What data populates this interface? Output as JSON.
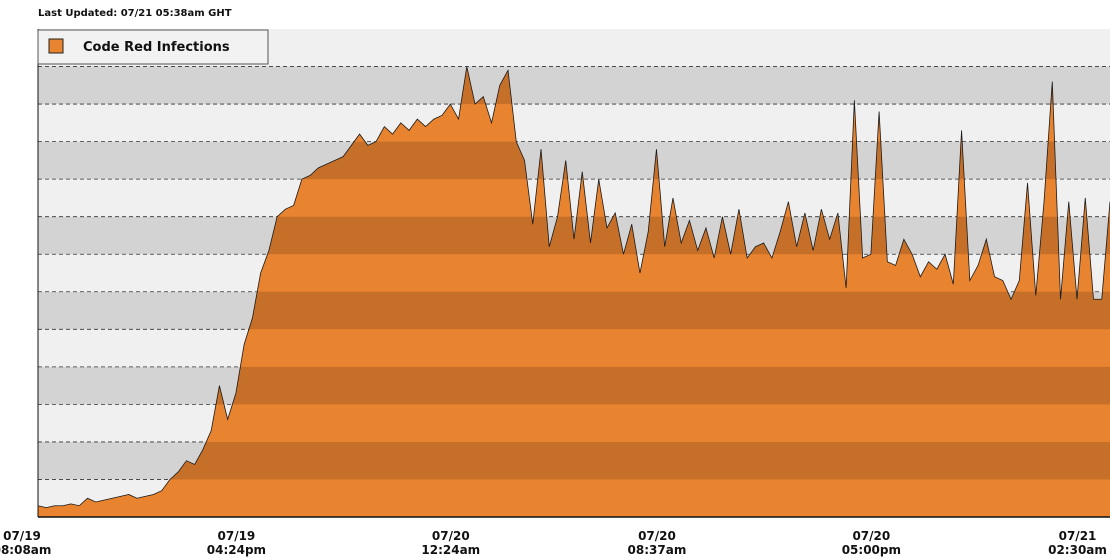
{
  "chart_data": {
    "type": "area",
    "subtitle": "Last Updated: 07/21 05:38am GHT",
    "series": [
      {
        "name": "Code Red Infections",
        "color": "#e8832f",
        "values": [
          0.3,
          0.25,
          0.3,
          0.3,
          0.35,
          0.3,
          0.5,
          0.4,
          0.45,
          0.5,
          0.55,
          0.6,
          0.5,
          0.55,
          0.6,
          0.7,
          1.0,
          1.2,
          1.5,
          1.4,
          1.8,
          2.3,
          3.5,
          2.6,
          3.3,
          4.6,
          5.3,
          6.5,
          7.1,
          8.0,
          8.2,
          8.3,
          9.0,
          9.1,
          9.3,
          9.4,
          9.5,
          9.6,
          9.9,
          10.2,
          9.9,
          10.0,
          10.4,
          10.2,
          10.5,
          10.3,
          10.6,
          10.4,
          10.6,
          10.7,
          11.0,
          10.6,
          12.0,
          11.0,
          11.2,
          10.5,
          11.5,
          11.9,
          10.0,
          9.5,
          7.8,
          9.8,
          7.2,
          8.0,
          9.5,
          7.4,
          9.2,
          7.3,
          9.0,
          7.7,
          8.1,
          7.0,
          7.8,
          6.5,
          7.6,
          9.8,
          7.2,
          8.5,
          7.3,
          7.9,
          7.1,
          7.7,
          6.9,
          8.0,
          7.0,
          8.2,
          6.9,
          7.2,
          7.3,
          6.9,
          7.6,
          8.4,
          7.2,
          8.1,
          7.1,
          8.2,
          7.4,
          8.1,
          6.1,
          11.1,
          6.9,
          7.0,
          10.8,
          6.8,
          6.7,
          7.4,
          7.0,
          6.4,
          6.8,
          6.6,
          7.0,
          6.2,
          10.3,
          6.3,
          6.7,
          7.4,
          6.4,
          6.3,
          5.8,
          6.3,
          8.9,
          5.9,
          8.4,
          11.6,
          5.8,
          8.4,
          5.8,
          8.5,
          5.8,
          5.8,
          8.4
        ]
      }
    ],
    "xlim": [
      0,
      130
    ],
    "xticks": [
      {
        "value": 0,
        "label": [
          "07/19",
          "08:08am"
        ]
      },
      {
        "value": 26,
        "label": [
          "07/19",
          "04:24pm"
        ]
      },
      {
        "value": 52,
        "label": [
          "07/20",
          "12:24am"
        ]
      },
      {
        "value": 77,
        "label": [
          "07/20",
          "08:37am"
        ]
      },
      {
        "value": 103,
        "label": [
          "07/20",
          "05:00pm"
        ]
      },
      {
        "value": 128,
        "label": [
          "07/21",
          "02:30am"
        ]
      }
    ],
    "ylim": [
      0,
      13
    ],
    "yticks": [
      1,
      2,
      3,
      4,
      5,
      6,
      7,
      8,
      9,
      10,
      11,
      12
    ],
    "grid": true,
    "legend": "top-left"
  }
}
